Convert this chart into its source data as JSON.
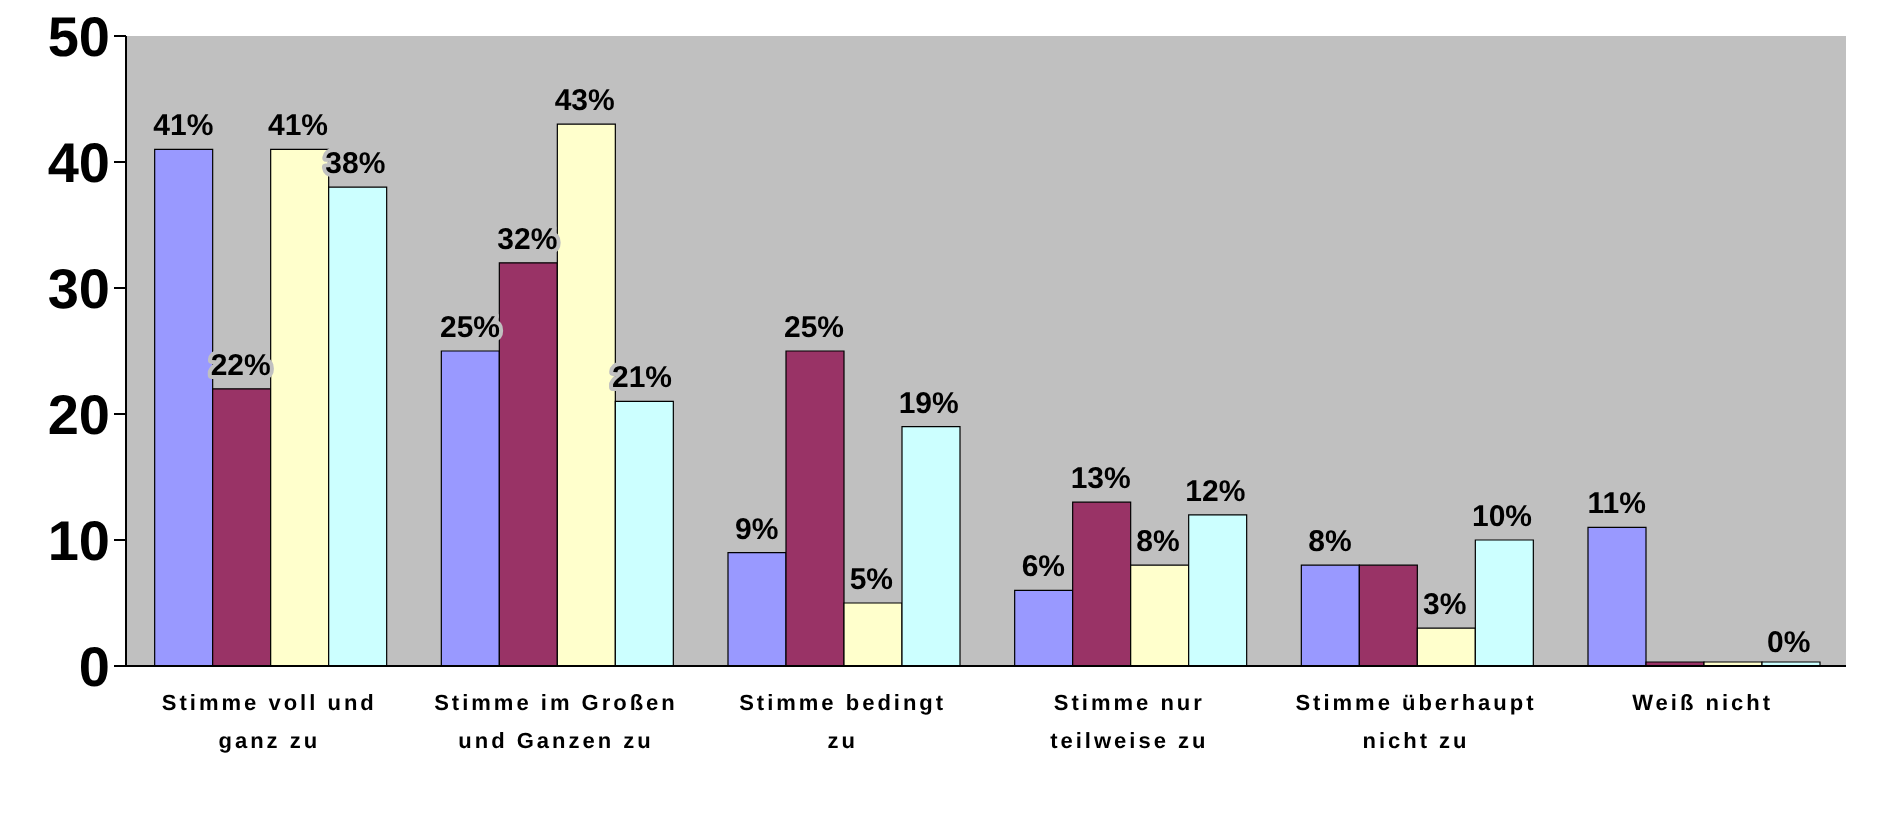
{
  "chart_data": {
    "type": "bar",
    "categories": [
      "Stimme voll und ganz zu",
      "Stimme im Großen und Ganzen zu",
      "Stimme bedingt zu",
      "Stimme nur teilweise zu",
      "Stimme überhaupt nicht zu",
      "Weiß nicht"
    ],
    "ylim": [
      0,
      50
    ],
    "yticks": [
      0,
      10,
      20,
      30,
      40,
      50
    ],
    "series": [
      {
        "color": "#9999ff",
        "values": [
          41,
          25,
          9,
          6,
          8,
          11
        ],
        "value_labels": [
          "41%",
          "25%",
          "9%",
          "6%",
          "8%",
          "11%"
        ]
      },
      {
        "color": "#993366",
        "values": [
          22,
          32,
          25,
          13,
          8,
          0
        ],
        "value_labels": [
          "22%",
          "32%",
          "25%",
          "13%",
          null,
          null
        ]
      },
      {
        "color": "#ffffcc",
        "values": [
          41,
          43,
          5,
          8,
          3,
          0
        ],
        "value_labels": [
          "41%",
          "43%",
          "5%",
          "8%",
          "3%",
          null
        ]
      },
      {
        "color": "#ccffff",
        "values": [
          38,
          21,
          19,
          12,
          10,
          0
        ],
        "value_labels": [
          "38%",
          "21%",
          "19%",
          "12%",
          "10%",
          "0%"
        ]
      }
    ]
  }
}
